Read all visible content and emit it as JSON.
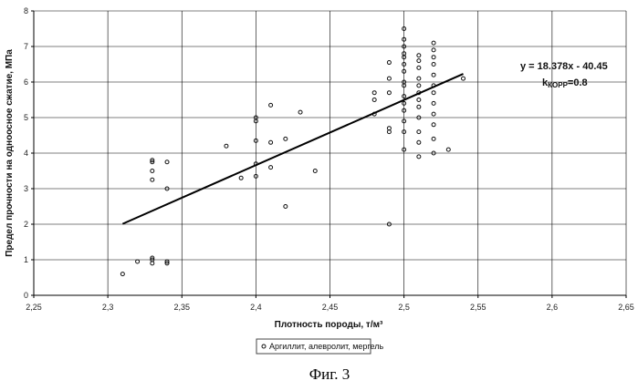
{
  "chart_data": {
    "type": "scatter",
    "xlabel": "Плотность породы, т/м³",
    "ylabel": "Предел прочности на одноосное сжатие, МПа",
    "xlim": [
      2.25,
      2.65
    ],
    "ylim": [
      0,
      8
    ],
    "xticks": [
      2.25,
      2.3,
      2.35,
      2.4,
      2.45,
      2.5,
      2.55,
      2.6,
      2.65
    ],
    "xtick_labels": [
      "2,25",
      "2,3",
      "2,35",
      "2,4",
      "2,45",
      "2,5",
      "2,55",
      "2,6",
      "2,65"
    ],
    "yticks": [
      0,
      1,
      2,
      3,
      4,
      5,
      6,
      7,
      8
    ],
    "ytick_labels": [
      "0",
      "1",
      "2",
      "3",
      "4",
      "5",
      "6",
      "7",
      "8"
    ],
    "grid": true,
    "legend_position": "bottom-center",
    "series": [
      {
        "name": "Аргиллит, алевролит, мергель",
        "marker": "open-circle",
        "points": [
          [
            2.31,
            0.6
          ],
          [
            2.32,
            0.95
          ],
          [
            2.33,
            0.9
          ],
          [
            2.33,
            1.0
          ],
          [
            2.33,
            1.05
          ],
          [
            2.34,
            0.9
          ],
          [
            2.34,
            0.95
          ],
          [
            2.33,
            3.25
          ],
          [
            2.33,
            3.5
          ],
          [
            2.33,
            3.75
          ],
          [
            2.33,
            3.8
          ],
          [
            2.34,
            3.0
          ],
          [
            2.34,
            3.75
          ],
          [
            2.38,
            4.2
          ],
          [
            2.39,
            3.3
          ],
          [
            2.4,
            3.35
          ],
          [
            2.4,
            3.7
          ],
          [
            2.4,
            4.35
          ],
          [
            2.4,
            4.9
          ],
          [
            2.4,
            5.0
          ],
          [
            2.41,
            3.6
          ],
          [
            2.41,
            4.3
          ],
          [
            2.41,
            5.35
          ],
          [
            2.42,
            2.5
          ],
          [
            2.42,
            4.4
          ],
          [
            2.43,
            5.15
          ],
          [
            2.44,
            3.5
          ],
          [
            2.48,
            5.1
          ],
          [
            2.48,
            5.5
          ],
          [
            2.48,
            5.7
          ],
          [
            2.49,
            2.0
          ],
          [
            2.49,
            4.6
          ],
          [
            2.49,
            4.7
          ],
          [
            2.49,
            5.7
          ],
          [
            2.49,
            6.1
          ],
          [
            2.49,
            6.55
          ],
          [
            2.5,
            4.1
          ],
          [
            2.5,
            4.6
          ],
          [
            2.5,
            4.9
          ],
          [
            2.5,
            5.2
          ],
          [
            2.5,
            5.4
          ],
          [
            2.5,
            5.6
          ],
          [
            2.5,
            5.9
          ],
          [
            2.5,
            6.0
          ],
          [
            2.5,
            6.3
          ],
          [
            2.5,
            6.5
          ],
          [
            2.5,
            6.7
          ],
          [
            2.5,
            6.8
          ],
          [
            2.5,
            7.0
          ],
          [
            2.5,
            7.2
          ],
          [
            2.5,
            7.5
          ],
          [
            2.51,
            3.9
          ],
          [
            2.51,
            4.3
          ],
          [
            2.51,
            4.6
          ],
          [
            2.51,
            5.0
          ],
          [
            2.51,
            5.3
          ],
          [
            2.51,
            5.5
          ],
          [
            2.51,
            5.7
          ],
          [
            2.51,
            5.9
          ],
          [
            2.51,
            6.1
          ],
          [
            2.51,
            6.4
          ],
          [
            2.51,
            6.6
          ],
          [
            2.51,
            6.75
          ],
          [
            2.52,
            4.0
          ],
          [
            2.52,
            4.4
          ],
          [
            2.52,
            4.8
          ],
          [
            2.52,
            5.1
          ],
          [
            2.52,
            5.4
          ],
          [
            2.52,
            5.7
          ],
          [
            2.52,
            5.9
          ],
          [
            2.52,
            6.2
          ],
          [
            2.52,
            6.5
          ],
          [
            2.52,
            6.7
          ],
          [
            2.52,
            6.9
          ],
          [
            2.52,
            7.1
          ],
          [
            2.53,
            4.1
          ],
          [
            2.54,
            6.1
          ]
        ]
      }
    ],
    "trendline": {
      "x": [
        2.31,
        2.54
      ],
      "y": [
        2.01,
        6.23
      ],
      "equation": "y = 18.378x - 40.45",
      "corr_prefix": "k",
      "corr_subscript": "КОРР",
      "corr_value": "=0.8"
    }
  },
  "caption": "Фиг. 3"
}
